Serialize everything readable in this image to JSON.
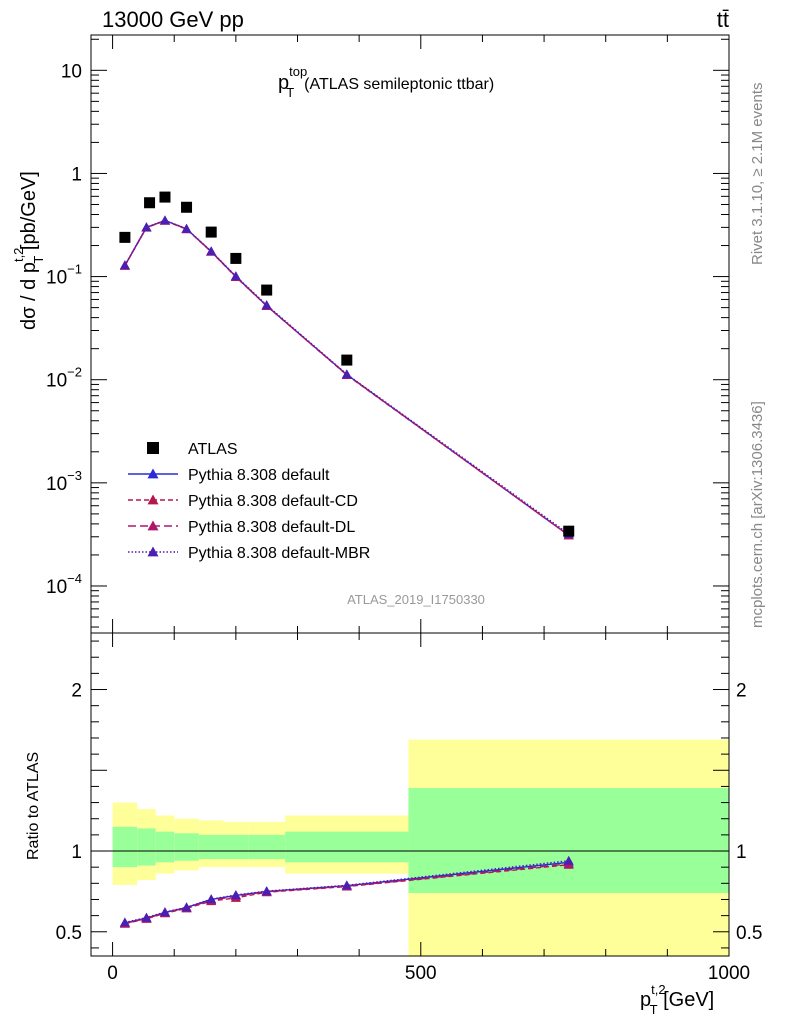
{
  "header": {
    "energy_label": "13000 GeV pp",
    "process_label": "tt̄"
  },
  "side_labels": {
    "rivet": "Rivet 3.1.10, ≥ 2.1M events",
    "mcplots": "mcplots.cern.ch [arXiv:1306.3436]"
  },
  "analysis_id": "ATLAS_2019_I1750330",
  "axes": {
    "y_main": {
      "prefix": "dσ / d p",
      "sup": "t,2",
      "sub": "T",
      "suffix": " [pb/GeV]"
    },
    "y_ratio": "Ratio to ATLAS",
    "x": {
      "base": "p",
      "sup": "t,2",
      "sub": "T",
      "suffix": " [GeV]"
    }
  },
  "main_title": {
    "base": "p",
    "sup": "top",
    "sub": "T",
    "rest": "(ATLAS semileptonic ttbar)"
  },
  "legend": [
    {
      "label": "ATLAS",
      "color": "#000000",
      "marker": "square",
      "dash": ""
    },
    {
      "label": "Pythia 8.308 default",
      "color": "#2a2ad6",
      "marker": "triangle",
      "dash": ""
    },
    {
      "label": "Pythia 8.308 default-CD",
      "color": "#b4184f",
      "marker": "triangle",
      "dash": "5,3"
    },
    {
      "label": "Pythia 8.308 default-DL",
      "color": "#b0156e",
      "marker": "triangle",
      "dash": "8,4"
    },
    {
      "label": "Pythia 8.308 default-MBR",
      "color": "#4a20b4",
      "marker": "triangle",
      "dash": "1.5,2"
    }
  ],
  "main_ticks": {
    "y": [
      {
        "value": 10,
        "base": "10",
        "sup": ""
      },
      {
        "value": 1,
        "base": "1",
        "sup": ""
      },
      {
        "value": 0.1,
        "base": "10",
        "sup": "−1"
      },
      {
        "value": 0.01,
        "base": "10",
        "sup": "−2"
      },
      {
        "value": 0.001,
        "base": "10",
        "sup": "−3"
      },
      {
        "value": 0.0001,
        "base": "10",
        "sup": "−4"
      }
    ]
  },
  "ratio_ticks": {
    "y": [
      {
        "value": 2,
        "label": "2"
      },
      {
        "value": 1,
        "label": "1"
      },
      {
        "value": 0.5,
        "label": "0.5"
      }
    ],
    "x": [
      {
        "value": 0,
        "label": "0"
      },
      {
        "value": 500,
        "label": "500"
      },
      {
        "value": 1000,
        "label": "1000"
      }
    ]
  },
  "chart_data": {
    "type": "scatter",
    "x_range": [
      -35,
      1000
    ],
    "main": {
      "y_range": [
        3.5e-05,
        22
      ],
      "log_y": true,
      "data": {
        "name": "ATLAS",
        "x": [
          20,
          60,
          85,
          120,
          160,
          200,
          250,
          380,
          740
        ],
        "y": [
          0.24,
          0.52,
          0.59,
          0.47,
          0.27,
          0.15,
          0.074,
          0.0155,
          0.00034
        ]
      },
      "series": [
        {
          "name": "Pythia 8.308 default",
          "x": [
            20,
            55,
            85,
            120,
            160,
            200,
            250,
            380,
            740
          ],
          "y": [
            0.128,
            0.3,
            0.35,
            0.29,
            0.175,
            0.1,
            0.052,
            0.0112,
            0.00031
          ]
        },
        {
          "name": "Pythia 8.308 default-CD",
          "x": [
            20,
            55,
            85,
            120,
            160,
            200,
            250,
            380,
            740
          ],
          "y": [
            0.127,
            0.298,
            0.348,
            0.288,
            0.174,
            0.099,
            0.052,
            0.0111,
            0.00031
          ]
        },
        {
          "name": "Pythia 8.308 default-DL",
          "x": [
            20,
            55,
            85,
            120,
            160,
            200,
            250,
            380,
            740
          ],
          "y": [
            0.128,
            0.299,
            0.349,
            0.289,
            0.175,
            0.1,
            0.052,
            0.0112,
            0.00031
          ]
        },
        {
          "name": "Pythia 8.308 default-MBR",
          "x": [
            20,
            55,
            85,
            120,
            160,
            200,
            250,
            380,
            740
          ],
          "y": [
            0.129,
            0.301,
            0.351,
            0.291,
            0.176,
            0.101,
            0.053,
            0.0113,
            0.00032
          ]
        }
      ]
    },
    "ratio": {
      "y_range": [
        0.35,
        2.35
      ],
      "bands": [
        {
          "x0": 0,
          "x1": 40,
          "inner": [
            0.9,
            1.15
          ],
          "outer": [
            0.79,
            1.3
          ]
        },
        {
          "x0": 40,
          "x1": 70,
          "inner": [
            0.91,
            1.14
          ],
          "outer": [
            0.82,
            1.26
          ]
        },
        {
          "x0": 70,
          "x1": 100,
          "inner": [
            0.93,
            1.12
          ],
          "outer": [
            0.86,
            1.22
          ]
        },
        {
          "x0": 100,
          "x1": 140,
          "inner": [
            0.94,
            1.11
          ],
          "outer": [
            0.88,
            1.2
          ]
        },
        {
          "x0": 140,
          "x1": 180,
          "inner": [
            0.95,
            1.1
          ],
          "outer": [
            0.9,
            1.19
          ]
        },
        {
          "x0": 180,
          "x1": 220,
          "inner": [
            0.95,
            1.1
          ],
          "outer": [
            0.9,
            1.18
          ]
        },
        {
          "x0": 220,
          "x1": 280,
          "inner": [
            0.95,
            1.1
          ],
          "outer": [
            0.9,
            1.18
          ]
        },
        {
          "x0": 280,
          "x1": 480,
          "inner": [
            0.93,
            1.12
          ],
          "outer": [
            0.86,
            1.22
          ]
        },
        {
          "x0": 480,
          "x1": 1000,
          "inner": [
            0.74,
            1.39
          ],
          "outer": [
            0.35,
            1.69
          ]
        }
      ],
      "series": [
        {
          "name": "Pythia 8.308 default",
          "x": [
            20,
            55,
            85,
            120,
            160,
            200,
            250,
            380,
            740
          ],
          "y": [
            0.555,
            0.585,
            0.62,
            0.65,
            0.7,
            0.725,
            0.75,
            0.785,
            0.93
          ]
        },
        {
          "name": "Pythia 8.308 default-CD",
          "x": [
            20,
            55,
            85,
            120,
            160,
            200,
            250,
            380,
            740
          ],
          "y": [
            0.55,
            0.58,
            0.615,
            0.645,
            0.69,
            0.71,
            0.745,
            0.78,
            0.915
          ]
        },
        {
          "name": "Pythia 8.308 default-DL",
          "x": [
            20,
            55,
            85,
            120,
            160,
            200,
            250,
            380,
            740
          ],
          "y": [
            0.552,
            0.582,
            0.618,
            0.648,
            0.695,
            0.72,
            0.748,
            0.782,
            0.92
          ]
        },
        {
          "name": "Pythia 8.308 default-MBR",
          "x": [
            20,
            55,
            85,
            120,
            160,
            200,
            250,
            380,
            740
          ],
          "y": [
            0.558,
            0.588,
            0.622,
            0.652,
            0.702,
            0.728,
            0.752,
            0.788,
            0.94
          ]
        }
      ]
    }
  }
}
